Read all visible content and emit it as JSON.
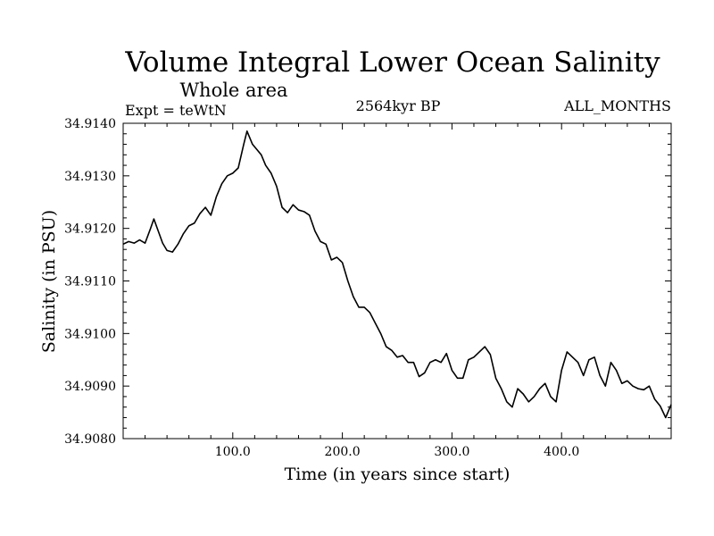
{
  "chart_data": {
    "type": "line",
    "title": "Volume Integral Lower Ocean Salinity",
    "subtitle": "Whole area",
    "experiment_label": "Expt = teWtN",
    "period_label": "2564kyr BP",
    "months_label": "ALL_MONTHS",
    "xlabel": "Time (in years since start)",
    "ylabel": "Salinity (in PSU)",
    "xlim": [
      0,
      500
    ],
    "ylim": [
      34.908,
      34.914
    ],
    "x_ticks": [
      100,
      200,
      300,
      400
    ],
    "x_tick_labels": [
      "100.0",
      "200.0",
      "300.0",
      "400.0"
    ],
    "y_ticks": [
      34.908,
      34.909,
      34.91,
      34.911,
      34.912,
      34.913,
      34.914
    ],
    "y_tick_labels": [
      "34.9080",
      "34.9090",
      "34.9100",
      "34.9110",
      "34.9120",
      "34.9130",
      "34.9140"
    ],
    "series": [
      {
        "name": "salinity",
        "color": "#000000",
        "x": [
          0,
          5,
          10,
          15,
          20,
          25,
          28,
          32,
          36,
          40,
          45,
          50,
          55,
          60,
          65,
          70,
          75,
          80,
          85,
          90,
          95,
          100,
          105,
          110,
          113,
          118,
          122,
          126,
          130,
          135,
          140,
          145,
          150,
          155,
          160,
          165,
          170,
          175,
          180,
          185,
          190,
          195,
          200,
          205,
          210,
          215,
          220,
          225,
          230,
          235,
          240,
          245,
          250,
          255,
          260,
          265,
          270,
          275,
          280,
          285,
          290,
          295,
          300,
          305,
          310,
          315,
          320,
          325,
          330,
          335,
          340,
          345,
          350,
          355,
          360,
          365,
          370,
          375,
          380,
          385,
          390,
          395,
          400,
          405,
          410,
          415,
          420,
          425,
          430,
          435,
          440,
          445,
          450,
          455,
          460,
          465,
          470,
          475,
          480,
          485,
          490,
          495,
          500
        ],
        "values": [
          34.9117,
          34.91175,
          34.91172,
          34.91178,
          34.91172,
          34.912,
          34.91218,
          34.91195,
          34.91172,
          34.91158,
          34.91155,
          34.9117,
          34.9119,
          34.91205,
          34.9121,
          34.91228,
          34.9124,
          34.91225,
          34.9126,
          34.91285,
          34.913,
          34.91305,
          34.91315,
          34.9136,
          34.91385,
          34.9136,
          34.9135,
          34.9134,
          34.9132,
          34.91305,
          34.9128,
          34.9124,
          34.9123,
          34.91245,
          34.91235,
          34.91232,
          34.91225,
          34.91195,
          34.91175,
          34.9117,
          34.9114,
          34.91145,
          34.91135,
          34.911,
          34.9107,
          34.9105,
          34.9105,
          34.9104,
          34.9102,
          34.91,
          34.90975,
          34.90968,
          34.90955,
          34.90958,
          34.90945,
          34.90945,
          34.90918,
          34.90925,
          34.90945,
          34.9095,
          34.90945,
          34.90962,
          34.9093,
          34.90915,
          34.90915,
          34.9095,
          34.90955,
          34.90965,
          34.90975,
          34.9096,
          34.90915,
          34.90895,
          34.9087,
          34.9086,
          34.90895,
          34.90885,
          34.9087,
          34.9088,
          34.90895,
          34.90905,
          34.9088,
          34.9087,
          34.9093,
          34.90965,
          34.90955,
          34.90945,
          34.9092,
          34.9095,
          34.90955,
          34.9092,
          34.909,
          34.90945,
          34.9093,
          34.90905,
          34.9091,
          34.909,
          34.90895,
          34.90893,
          34.909,
          34.90875,
          34.90862,
          34.9084,
          34.90865
        ]
      }
    ]
  }
}
